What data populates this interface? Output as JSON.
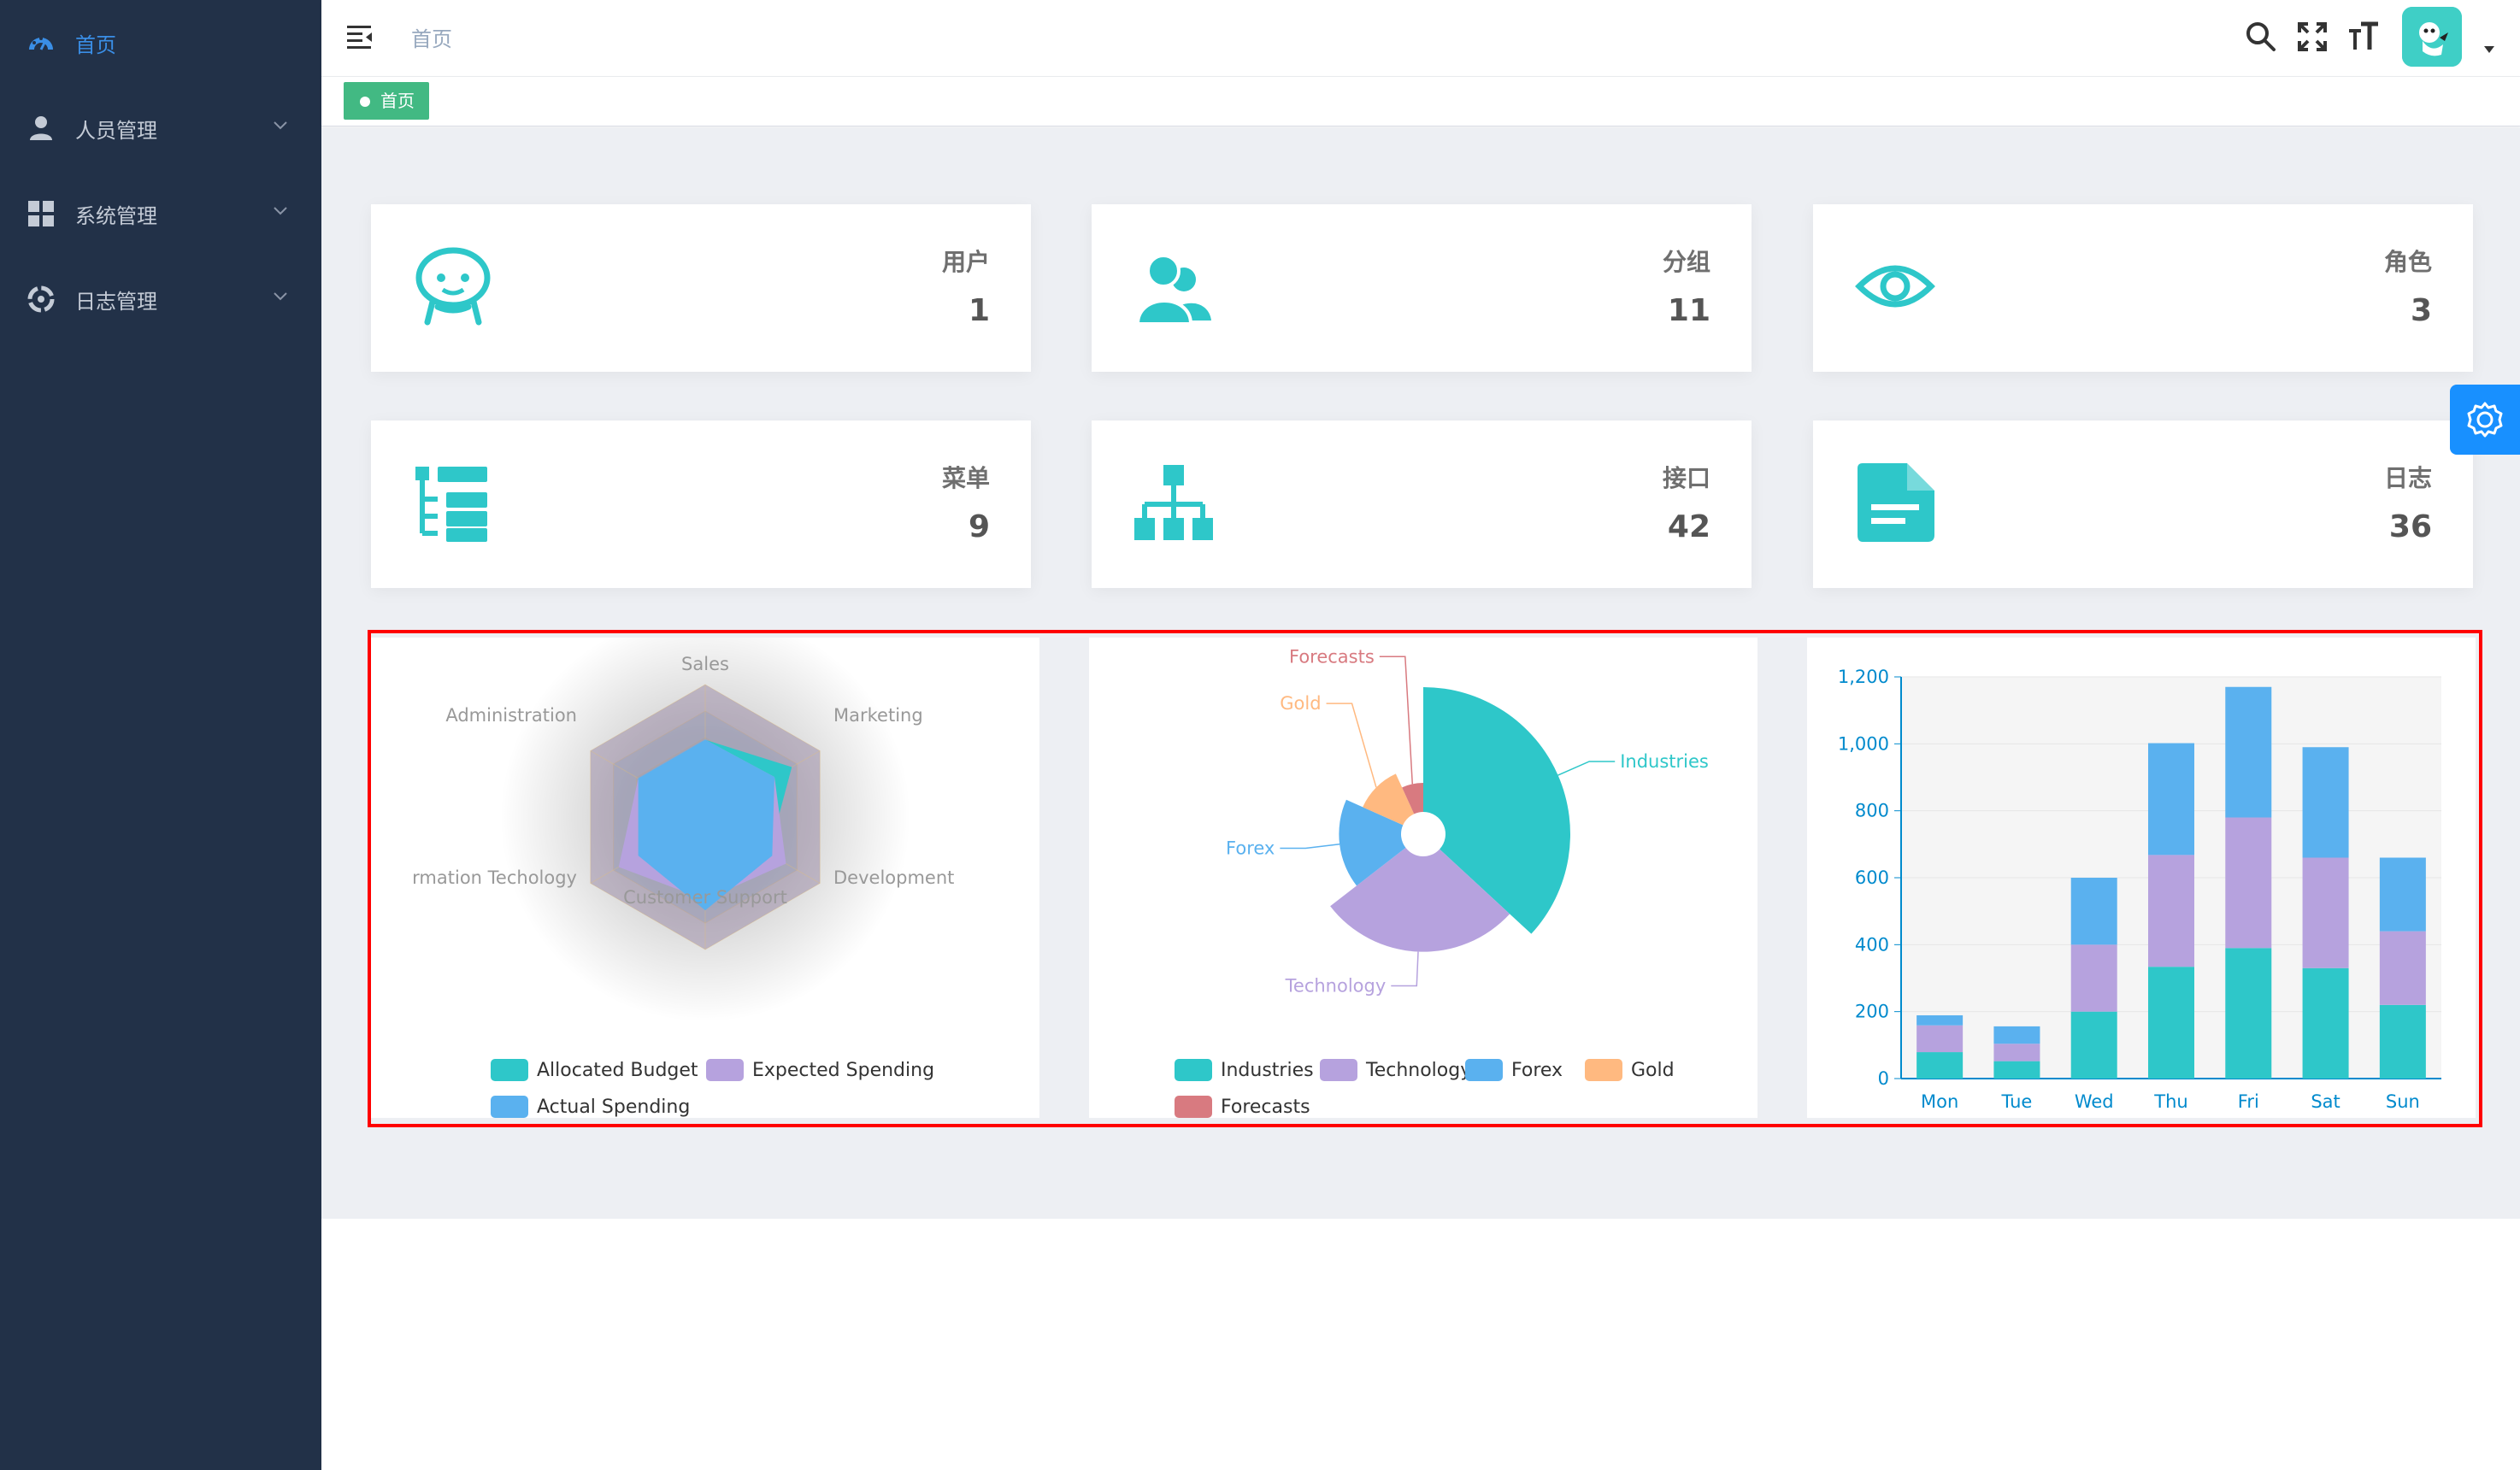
{
  "sidebar": {
    "items": [
      {
        "label": "首页",
        "icon": "dashboard-icon",
        "active": true
      },
      {
        "label": "人员管理",
        "icon": "user-icon",
        "active": false
      },
      {
        "label": "系统管理",
        "icon": "grid-icon",
        "active": false
      },
      {
        "label": "日志管理",
        "icon": "dial-icon",
        "active": false
      }
    ]
  },
  "header": {
    "breadcrumb": "首页",
    "icons": [
      "search-icon",
      "fullscreen-icon",
      "font-size-icon"
    ]
  },
  "tags": [
    {
      "label": "首页",
      "active": true
    }
  ],
  "cards": [
    {
      "title": "用户",
      "value": "1",
      "icon": "robot-face-icon"
    },
    {
      "title": "分组",
      "value": "11",
      "icon": "people-icon"
    },
    {
      "title": "角色",
      "value": "3",
      "icon": "eye-icon"
    },
    {
      "title": "菜单",
      "value": "9",
      "icon": "tree-list-icon"
    },
    {
      "title": "接口",
      "value": "42",
      "icon": "org-chart-icon"
    },
    {
      "title": "日志",
      "value": "36",
      "icon": "document-icon"
    }
  ],
  "colors": {
    "accent": "#2ec7c9",
    "purple": "#b6a2de",
    "blue": "#5ab1ef",
    "orange": "#ffb980",
    "red": "#d87a80",
    "sidebar": "#223148",
    "active": "#3a8ee6",
    "tag": "#42b983",
    "settings": "#1890ff"
  },
  "chart_data": [
    {
      "type": "radar",
      "indicators": [
        "Sales",
        "Marketing",
        "Development",
        "Customer Support",
        "Information Techology",
        "Administration"
      ],
      "indicator_visible_labels": [
        "Sales",
        "Marketing",
        "Development",
        "Customer Support",
        "rmation Techology",
        "Administration"
      ],
      "series": [
        {
          "name": "Allocated Budget",
          "values": [
            0.58,
            0.75,
            0.55,
            0.58,
            0.55,
            0.58
          ]
        },
        {
          "name": "Expected Spending",
          "values": [
            0.58,
            0.6,
            0.7,
            0.62,
            0.75,
            0.58
          ]
        },
        {
          "name": "Actual Spending",
          "values": [
            0.58,
            0.6,
            0.58,
            0.7,
            0.58,
            0.58
          ]
        }
      ],
      "legend": [
        "Allocated Budget",
        "Expected Spending",
        "Actual Spending"
      ],
      "legend_position": "bottom"
    },
    {
      "type": "pie",
      "rose": true,
      "slices": [
        {
          "name": "Industries",
          "value": 320
        },
        {
          "name": "Technology",
          "value": 240
        },
        {
          "name": "Forex",
          "value": 149
        },
        {
          "name": "Gold",
          "value": 100
        },
        {
          "name": "Forecasts",
          "value": 59
        }
      ],
      "legend": [
        "Industries",
        "Technology",
        "Forex",
        "Gold",
        "Forecasts"
      ],
      "legend_position": "bottom"
    },
    {
      "type": "bar",
      "stacked": true,
      "categories": [
        "Mon",
        "Tue",
        "Wed",
        "Thu",
        "Fri",
        "Sat",
        "Sun"
      ],
      "series": [
        {
          "values": [
            79,
            52,
            200,
            334,
            390,
            330,
            220
          ]
        },
        {
          "values": [
            80,
            52,
            200,
            334,
            390,
            330,
            220
          ]
        },
        {
          "values": [
            30,
            52,
            200,
            334,
            390,
            330,
            220
          ]
        }
      ],
      "ylim": [
        0,
        1200
      ],
      "yticks": [
        "0",
        "200",
        "400",
        "600",
        "800",
        "1,000",
        "1,200"
      ],
      "grid": true
    }
  ]
}
